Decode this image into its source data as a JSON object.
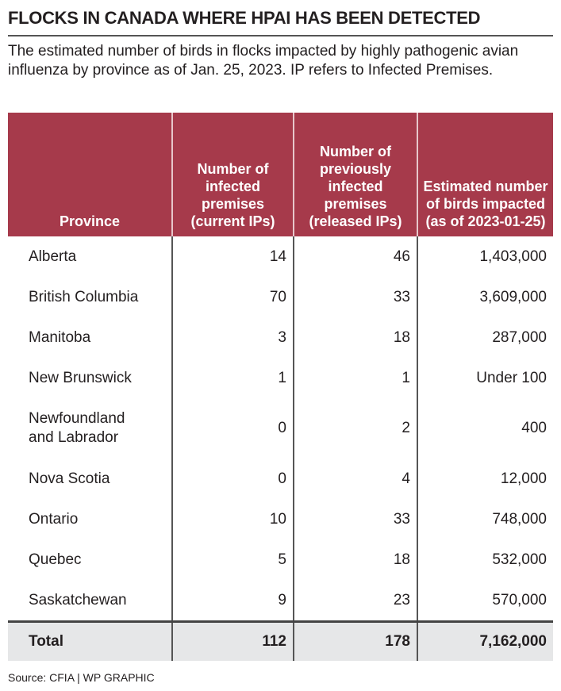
{
  "title": "FLOCKS IN CANADA WHERE HPAI HAS BEEN DETECTED",
  "subtitle": "The estimated number of birds in flocks impacted by highly pathogenic avian influenza by province as of Jan. 25, 2023. IP refers to Infected Premises.",
  "chart_data": {
    "type": "table",
    "columns": [
      "Province",
      "Number of infected premises (current IPs)",
      "Number of previously infected premises (released IPs)",
      "Estimated number of birds impacted (as of 2023-01-25)"
    ],
    "rows": [
      [
        "Alberta",
        "14",
        "46",
        "1,403,000"
      ],
      [
        "British Columbia",
        "70",
        "33",
        "3,609,000"
      ],
      [
        "Manitoba",
        "3",
        "18",
        "287,000"
      ],
      [
        "New Brunswick",
        "1",
        "1",
        "Under 100"
      ],
      [
        "Newfoundland and Labrador",
        "0",
        "2",
        "400"
      ],
      [
        "Nova Scotia",
        "0",
        "4",
        "12,000"
      ],
      [
        "Ontario",
        "10",
        "33",
        "748,000"
      ],
      [
        "Quebec",
        "5",
        "18",
        "532,000"
      ],
      [
        "Saskatchewan",
        "9",
        "23",
        "570,000"
      ]
    ],
    "total": [
      "Total",
      "112",
      "178",
      "7,162,000"
    ]
  },
  "source": "Source: CFIA  |  WP GRAPHIC",
  "colors": {
    "header": "#a63a4b",
    "total_bg": "#e6e7e8"
  }
}
